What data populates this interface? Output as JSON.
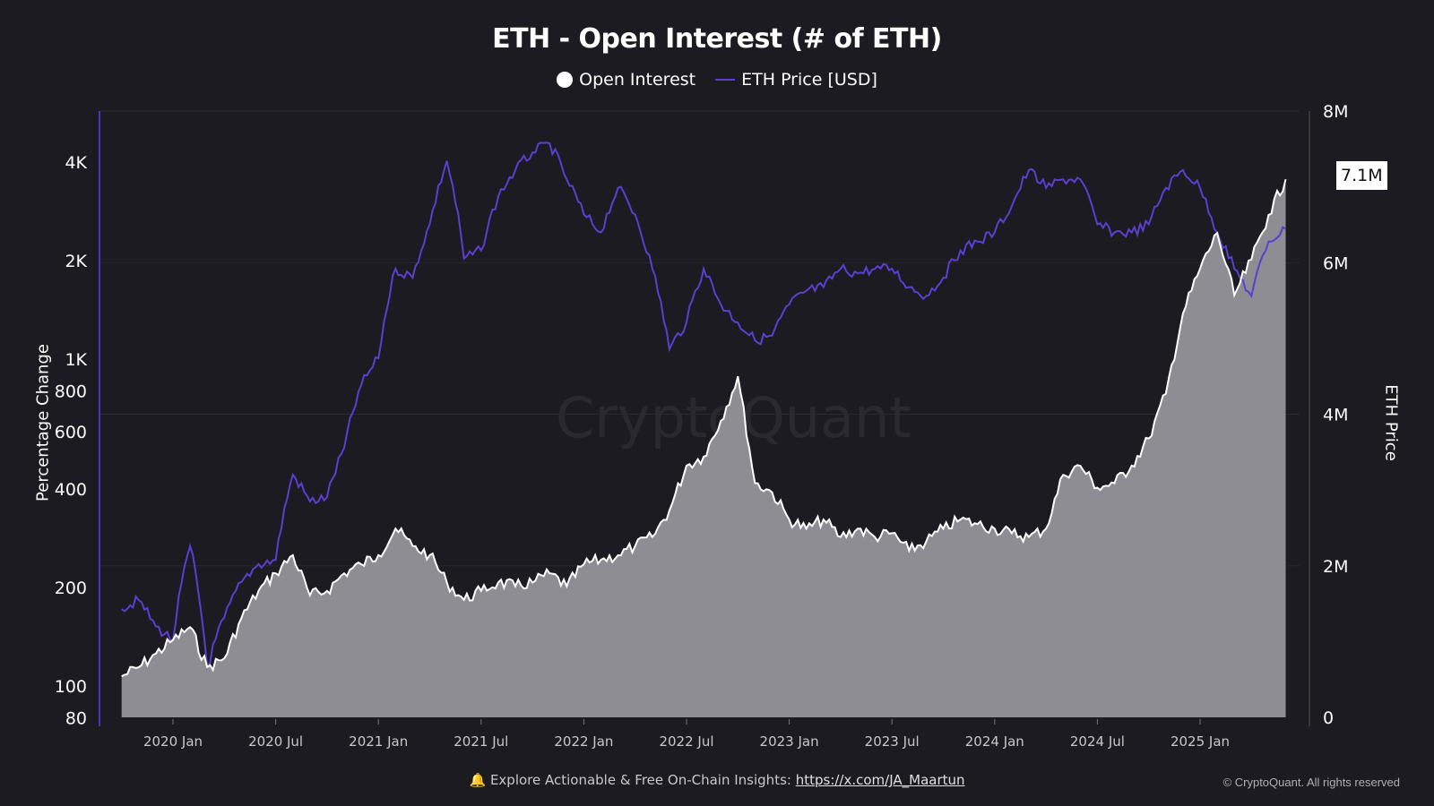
{
  "chart_data": {
    "type": "area",
    "title": "ETH - Open Interest (# of ETH)",
    "legend": [
      "Open Interest",
      "ETH Price [USD]"
    ],
    "legend_placement": "top-center",
    "left_axis": {
      "label": "Percentage Change",
      "scale": "log",
      "ticks": [
        "4K",
        "2K",
        "1K",
        "800",
        "600",
        "400",
        "200",
        "100",
        "80"
      ],
      "tick_values": [
        4000,
        2000,
        1000,
        800,
        600,
        400,
        200,
        100,
        80
      ],
      "range": [
        80,
        5700
      ]
    },
    "right_axis": {
      "label": "ETH Price",
      "scale": "linear",
      "ticks": [
        "8M",
        "6M",
        "4M",
        "2M",
        "0"
      ],
      "tick_values": [
        8,
        6,
        4,
        2,
        0
      ],
      "unit": "M",
      "range": [
        0,
        8
      ]
    },
    "x_ticks": [
      "2020 Jan",
      "2020 Jul",
      "2021 Jan",
      "2021 Jul",
      "2022 Jan",
      "2022 Jul",
      "2023 Jan",
      "2023 Jul",
      "2024 Jan",
      "2024 Jul",
      "2025 Jan"
    ],
    "x_tick_dates": [
      "2020-01",
      "2020-07",
      "2021-01",
      "2021-07",
      "2022-01",
      "2022-07",
      "2023-01",
      "2023-07",
      "2024-01",
      "2024-07",
      "2025-01"
    ],
    "last_value_label": "7.1M",
    "grid": "horizontal",
    "colors": {
      "open_interest_line": "#ffffff",
      "open_interest_fill": "#8e8d93",
      "eth_price": "#5a3fd0",
      "background": "#1c1b21"
    },
    "dates": [
      "2019-10",
      "2019-11",
      "2019-12",
      "2020-01",
      "2020-02",
      "2020-03",
      "2020-04",
      "2020-05",
      "2020-06",
      "2020-07",
      "2020-08",
      "2020-09",
      "2020-10",
      "2020-11",
      "2020-12",
      "2021-01",
      "2021-02",
      "2021-03",
      "2021-04",
      "2021-05",
      "2021-06",
      "2021-07",
      "2021-08",
      "2021-09",
      "2021-10",
      "2021-11",
      "2021-12",
      "2022-01",
      "2022-02",
      "2022-03",
      "2022-04",
      "2022-05",
      "2022-06",
      "2022-07",
      "2022-08",
      "2022-09",
      "2022-10",
      "2022-11",
      "2022-12",
      "2023-01",
      "2023-02",
      "2023-03",
      "2023-04",
      "2023-05",
      "2023-06",
      "2023-07",
      "2023-08",
      "2023-09",
      "2023-10",
      "2023-11",
      "2023-12",
      "2024-01",
      "2024-02",
      "2024-03",
      "2024-04",
      "2024-05",
      "2024-06",
      "2024-07",
      "2024-08",
      "2024-09",
      "2024-10",
      "2024-11",
      "2024-12",
      "2025-01",
      "2025-02",
      "2025-03",
      "2025-04",
      "2025-05",
      "2025-06"
    ],
    "series": [
      {
        "name": "Open Interest",
        "axis": "right",
        "unit": "M ETH",
        "values": [
          0.54,
          0.66,
          0.84,
          1.02,
          1.19,
          0.66,
          0.78,
          1.31,
          1.67,
          1.9,
          2.14,
          1.61,
          1.67,
          1.9,
          2.02,
          2.14,
          2.49,
          2.26,
          2.14,
          1.78,
          1.55,
          1.67,
          1.78,
          1.73,
          1.78,
          1.9,
          1.73,
          2.02,
          2.08,
          2.14,
          2.26,
          2.38,
          2.73,
          3.32,
          3.44,
          3.91,
          4.5,
          3.09,
          2.97,
          2.61,
          2.49,
          2.61,
          2.38,
          2.49,
          2.38,
          2.43,
          2.2,
          2.32,
          2.49,
          2.61,
          2.55,
          2.49,
          2.43,
          2.38,
          2.49,
          3.2,
          3.32,
          3.03,
          3.09,
          3.32,
          3.68,
          4.27,
          5.33,
          5.92,
          6.39,
          5.57,
          6.04,
          6.63,
          7.1
        ]
      },
      {
        "name": "ETH Price [USD]",
        "axis": "left",
        "values": [
          172,
          183,
          152,
          138,
          268,
          114,
          162,
          208,
          236,
          243,
          443,
          367,
          378,
          535,
          833,
          1006,
          1890,
          1775,
          2585,
          4040,
          2030,
          2150,
          3140,
          3790,
          4290,
          4570,
          3550,
          2770,
          2440,
          3340,
          2770,
          1890,
          1072,
          1295,
          1890,
          1470,
          1295,
          1140,
          1180,
          1470,
          1620,
          1660,
          1890,
          1830,
          1890,
          1890,
          1660,
          1560,
          1775,
          2150,
          2290,
          2440,
          2940,
          3790,
          3340,
          3550,
          3550,
          2585,
          2440,
          2440,
          2585,
          3340,
          3790,
          3340,
          2440,
          1890,
          1560,
          2290,
          2500
        ]
      }
    ]
  },
  "watermark": "CryptoQuant",
  "footer": {
    "icon": "bell-icon",
    "text": "Explore Actionable & Free On-Chain Insights: ",
    "link": "https://x.com/JA_Maartun",
    "copyright": "© CryptoQuant. All rights reserved"
  }
}
